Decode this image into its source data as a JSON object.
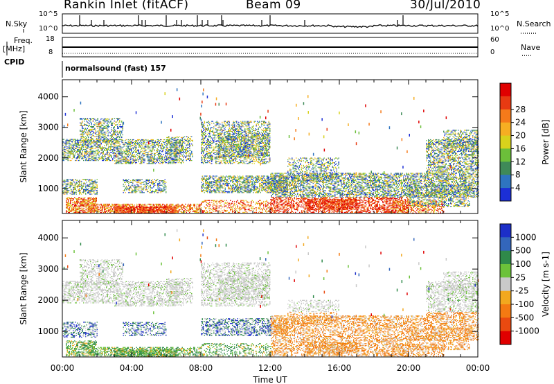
{
  "header": {
    "title": "Rankin Inlet (fitACF)",
    "beam": "Beam 09",
    "date": "30/Jul/2010"
  },
  "top_panels": {
    "nsky_label": "N.Sky",
    "nsky_ticks": [
      "10^5",
      "10^0"
    ],
    "nsearch_label": "N.Search",
    "nsearch_ticks": [
      "10^5",
      "10^0"
    ],
    "freq_label": "Freq.",
    "freq_unit": "[MHz]",
    "freq_ticks": [
      "18",
      "8"
    ],
    "nave_label": "Nave",
    "nave_ticks": [
      "60",
      "0"
    ],
    "cpid_label": "CPID",
    "cpid_text": "normalsound (fast) 157"
  },
  "chart_data": [
    {
      "type": "heatmap",
      "name": "power-panel",
      "xlabel": "Time UT",
      "ylabel": "Slant Range [km]",
      "x_ticks": [
        "00:00",
        "04:00",
        "08:00",
        "12:00",
        "16:00",
        "20:00",
        "00:00"
      ],
      "x_range_hours": [
        0,
        24
      ],
      "y_ticks": [
        1000,
        2000,
        3000,
        4000
      ],
      "y_range_km": [
        180,
        4560
      ],
      "colorbar": {
        "label": "Power [dB]",
        "ticks": [
          "4",
          "8",
          "12",
          "16",
          "20",
          "24",
          "28"
        ],
        "colors": [
          "#1c2fd6",
          "#2e74c0",
          "#3f8a58",
          "#6cbf3a",
          "#d8d21c",
          "#f6ae22",
          "#f57a1a",
          "#e83a12",
          "#e00000"
        ]
      }
    },
    {
      "type": "heatmap",
      "name": "velocity-panel",
      "xlabel": "Time UT",
      "ylabel": "Slant Range [km]",
      "x_ticks": [
        "00:00",
        "04:00",
        "08:00",
        "12:00",
        "16:00",
        "20:00",
        "00:00"
      ],
      "x_range_hours": [
        0,
        24
      ],
      "y_ticks": [
        1000,
        2000,
        3000,
        4000
      ],
      "y_range_km": [
        180,
        4560
      ],
      "colorbar": {
        "label": "Velocity [m s-1]",
        "ticks": [
          "1000",
          "500",
          "100",
          "25",
          "-25",
          "-100",
          "-500",
          "-1000"
        ],
        "colors": [
          "#1c2fc8",
          "#3366bb",
          "#2f8a4a",
          "#6cc23a",
          "#c9c9c9",
          "#f2a81e",
          "#f47a12",
          "#ea4a10",
          "#e00000"
        ]
      }
    }
  ],
  "footer": {
    "time_label": "Time UT"
  }
}
